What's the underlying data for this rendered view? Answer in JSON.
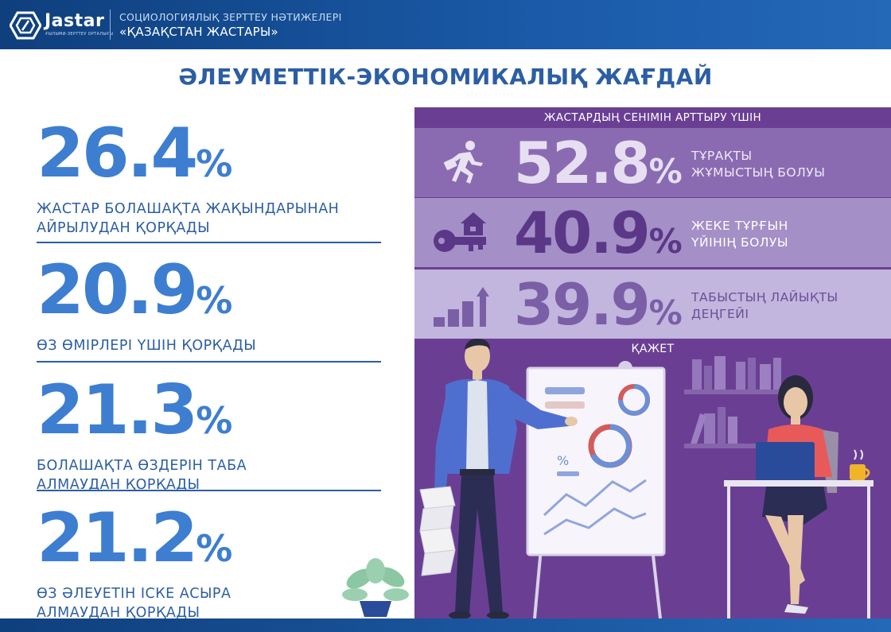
{
  "header": {
    "brand": "Jastar",
    "brand_sub": "ҒЫЛЫМИ-ЗЕРТТЕУ ОРТАЛЫҒЫ",
    "line1": "СОЦИОЛОГИЯЛЫҚ ЗЕРТТЕУ НӘТИЖЕЛЕРІ",
    "line2": "«ҚАЗАҚСТАН ЖАСТАРЫ»"
  },
  "title": "ӘЛЕУМЕТТІК-ЭКОНОМИКАЛЫҚ ЖАҒДАЙ",
  "left_stats": [
    {
      "value": "26.4",
      "unit": "%",
      "label": "ЖАСТАР БОЛАШАҚТА ЖАҚЫНДАРЫНАН АЙРЫЛУДАН ҚОРҚАДЫ"
    },
    {
      "value": "20.9",
      "unit": "%",
      "label": "ӨЗ ӨМІРЛЕРІ ҮШІН ҚОРҚАДЫ"
    },
    {
      "value": "21.3",
      "unit": "%",
      "label": "БОЛАШАҚТА ӨЗДЕРІН ТАБА АЛМАУДАН ҚОРҚАДЫ"
    },
    {
      "value": "21.2",
      "unit": "%",
      "label": "ӨЗ ӘЛЕУЕТІН ІСКЕ АСЫРА АЛМАУДАН ҚОРҚАДЫ"
    }
  ],
  "panel": {
    "title": "ЖАСТАРДЫҢ СЕНІМІН АРТТЫРУ ҮШІН",
    "need_label": "ҚАЖЕТ",
    "rows": [
      {
        "value": "52.8",
        "unit": "%",
        "label_l1": "ТҰРАҚТЫ",
        "label_l2": "ЖҰМЫСТЫҢ БОЛУЫ",
        "icon": "running-worker-icon"
      },
      {
        "value": "40.9",
        "unit": "%",
        "label_l1": "ЖЕКЕ ТҰРҒЫН",
        "label_l2": "ҮЙІНІҢ БОЛУЫ",
        "icon": "house-key-icon"
      },
      {
        "value": "39.9",
        "unit": "%",
        "label_l1": "ТАБЫСТЫҢ ЛАЙЫҚТЫ",
        "label_l2": "ДЕҢГЕЙІ",
        "icon": "growth-bars-icon"
      }
    ]
  },
  "colors": {
    "header": "#1a5aa8",
    "accent_blue": "#3d7ed1",
    "panel_purple": "#6a3f93",
    "row1": "#8a6bb1",
    "row2": "#a48fc7",
    "row3": "#c2b5de"
  }
}
